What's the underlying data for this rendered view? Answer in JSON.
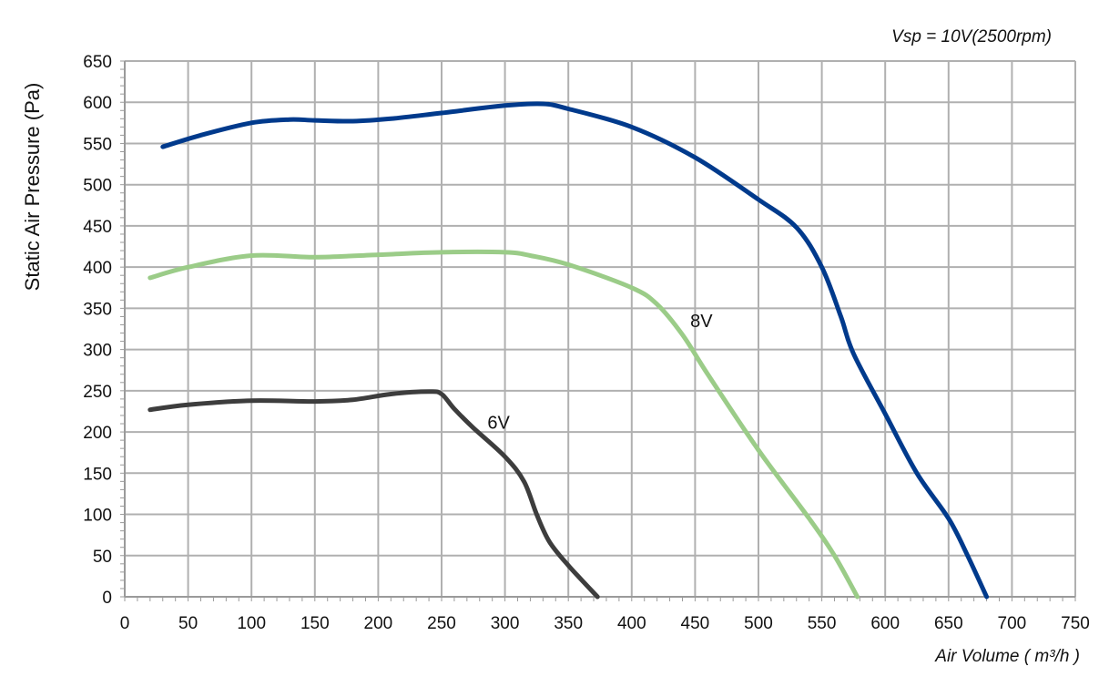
{
  "chart_data": {
    "type": "line",
    "title": "",
    "annotation_top_right": "Vsp = 10V(2500rpm)",
    "xlabel": "Air Volume ( m³/h )",
    "ylabel": "Static Air Pressure  (Pa)",
    "xlim": [
      0,
      750
    ],
    "ylim": [
      0,
      650
    ],
    "x_ticks": [
      0,
      50,
      100,
      150,
      200,
      250,
      300,
      350,
      400,
      450,
      500,
      550,
      600,
      650,
      700,
      750
    ],
    "y_ticks": [
      0,
      50,
      100,
      150,
      200,
      250,
      300,
      350,
      400,
      450,
      500,
      550,
      600,
      650
    ],
    "grid": true,
    "legend": "none",
    "series": [
      {
        "color": "#003a8c",
        "points": [
          [
            30,
            546
          ],
          [
            60,
            560
          ],
          [
            100,
            575
          ],
          [
            130,
            579
          ],
          [
            150,
            578
          ],
          [
            180,
            577
          ],
          [
            210,
            580
          ],
          [
            250,
            587
          ],
          [
            300,
            596
          ],
          [
            330,
            598
          ],
          [
            350,
            592
          ],
          [
            400,
            570
          ],
          [
            450,
            533
          ],
          [
            500,
            482
          ],
          [
            530,
            448
          ],
          [
            550,
            400
          ],
          [
            565,
            340
          ],
          [
            575,
            295
          ],
          [
            600,
            222
          ],
          [
            625,
            150
          ],
          [
            650,
            95
          ],
          [
            665,
            50
          ],
          [
            680,
            0
          ]
        ]
      },
      {
        "color": "#9bcc88",
        "points": [
          [
            20,
            387
          ],
          [
            50,
            400
          ],
          [
            100,
            414
          ],
          [
            150,
            412
          ],
          [
            200,
            415
          ],
          [
            250,
            418
          ],
          [
            300,
            418
          ],
          [
            320,
            414
          ],
          [
            350,
            403
          ],
          [
            400,
            375
          ],
          [
            420,
            355
          ],
          [
            440,
            318
          ],
          [
            460,
            270
          ],
          [
            500,
            178
          ],
          [
            540,
            95
          ],
          [
            560,
            50
          ],
          [
            578,
            0
          ]
        ]
      },
      {
        "name": "8V",
        "color": "#9bcc88",
        "label_at": [
          455,
          327
        ],
        "points": []
      },
      {
        "name": "6V",
        "color": "#3d3d3d",
        "label_at": [
          295,
          204
        ],
        "points": [
          [
            20,
            227
          ],
          [
            50,
            233
          ],
          [
            100,
            238
          ],
          [
            150,
            237
          ],
          [
            180,
            239
          ],
          [
            210,
            246
          ],
          [
            240,
            249
          ],
          [
            250,
            246
          ],
          [
            260,
            228
          ],
          [
            275,
            205
          ],
          [
            300,
            170
          ],
          [
            315,
            140
          ],
          [
            325,
            100
          ],
          [
            335,
            67
          ],
          [
            350,
            38
          ],
          [
            373,
            0
          ]
        ]
      }
    ]
  }
}
